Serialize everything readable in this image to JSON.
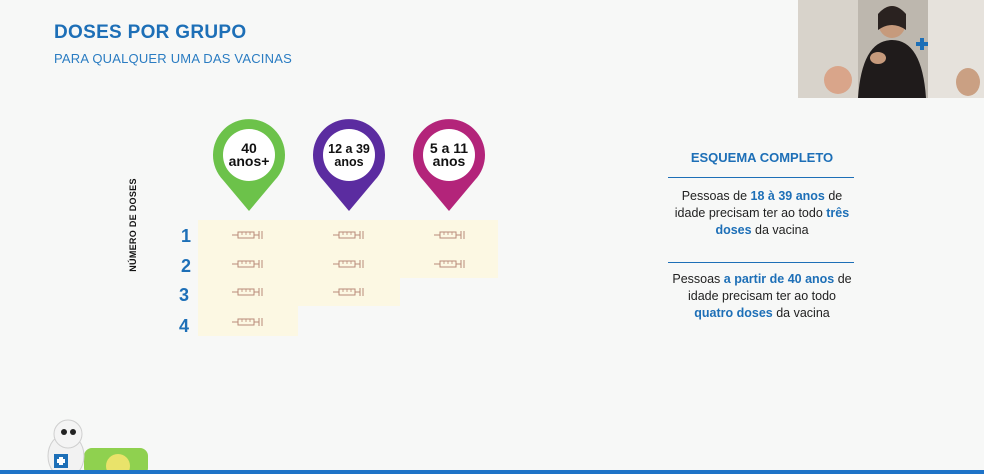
{
  "slide": {
    "title": "DOSES POR GRUPO",
    "subtitle": "PARA QUALQUER UMA DAS VACINAS"
  },
  "groups": [
    {
      "line1": "40",
      "line2": "anos+",
      "color": "#6cc24a",
      "doses": 4
    },
    {
      "line1": "12 a 39",
      "line2": "anos",
      "color": "#5b2ca0",
      "doses": 3
    },
    {
      "line1": "5 a 11",
      "line2": "anos",
      "color": "#b3247a",
      "doses": 2
    }
  ],
  "y_axis_label": "NÚMERO DE DOSES",
  "row_labels": [
    "1",
    "2",
    "3",
    "4"
  ],
  "info": {
    "heading": "ESQUEMA COMPLETO",
    "block1": {
      "p1": "Pessoas de ",
      "h1": "18 à 39 anos",
      "p2": " de idade precisam  ter ao todo ",
      "h2": "três doses",
      "p3": " da vacina"
    },
    "block2": {
      "p1": "Pessoas ",
      "h1": "a partir de 40 anos",
      "p2": " de idade precisam ter ao todo ",
      "h2": "quatro doses",
      "p3": " da vacina"
    }
  },
  "icons": {
    "syringe": "syringe-icon",
    "pin": "map-pin-icon"
  },
  "colors": {
    "accent": "#1d6fb7",
    "table_bg": "#fcf8e3",
    "bottom_bar": "#1e73c8"
  }
}
